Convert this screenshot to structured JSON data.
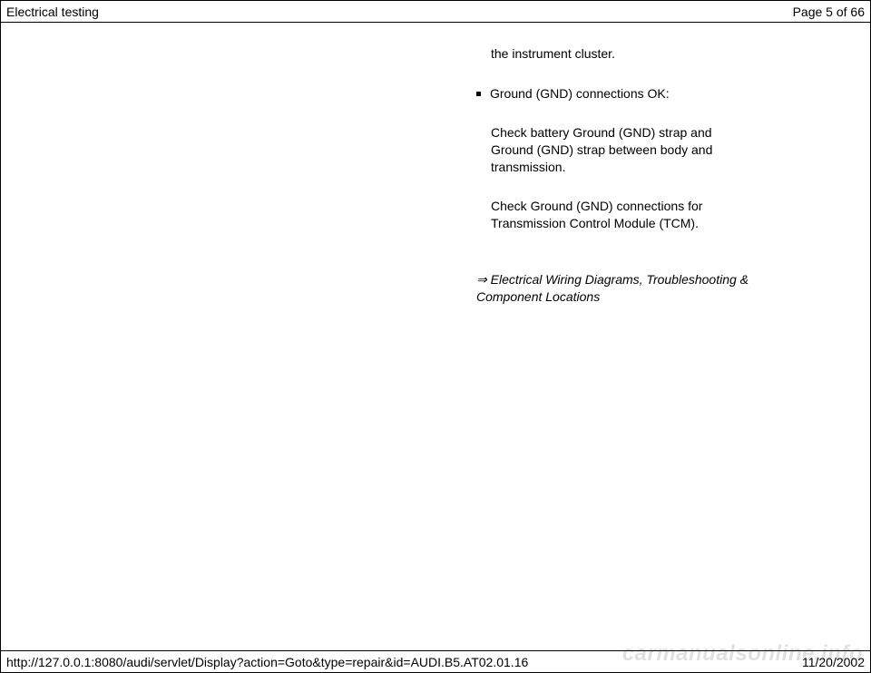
{
  "header": {
    "title": "Electrical testing",
    "page_label": "Page 5 of 66"
  },
  "content": {
    "line_top": "the instrument cluster.",
    "bullet_label": "Ground (GND) connections OK:",
    "sub1": "Check battery Ground (GND) strap and Ground (GND) strap between body and transmission.",
    "sub2": "Check Ground (GND) connections for Transmission Control Module (TCM).",
    "ref_arrow": "⇒",
    "ref_text": " Electrical Wiring Diagrams, Troubleshooting & Component Locations"
  },
  "footer": {
    "url": "http://127.0.0.1:8080/audi/servlet/Display?action=Goto&type=repair&id=AUDI.B5.AT02.01.16",
    "date": "11/20/2002"
  },
  "watermark": "carmanualsonline.info"
}
